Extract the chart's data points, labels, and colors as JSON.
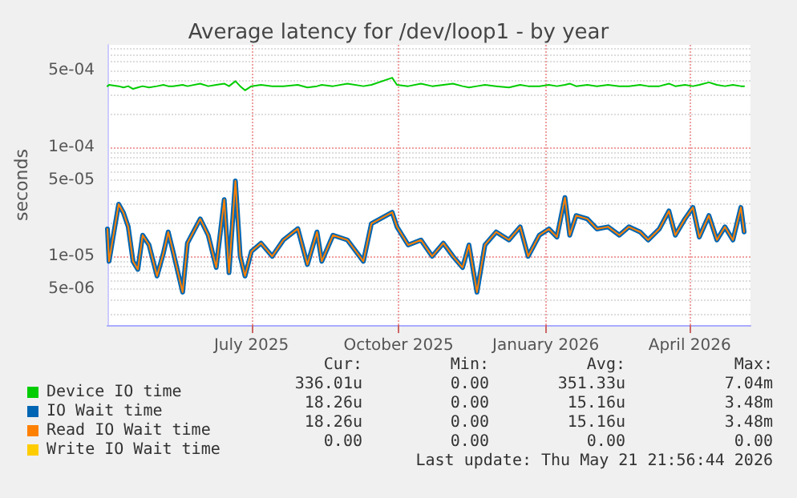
{
  "chart_data": {
    "type": "line",
    "title": "Average latency for /dev/loop1 - by year",
    "ylabel": "seconds",
    "log": "y",
    "grid": true,
    "legend": "bottom left",
    "xlim": [
      "2025-04-02",
      "2026-05-09"
    ],
    "xticks": [
      {
        "value": "2025-07-01",
        "label": "July 2025"
      },
      {
        "value": "2025-10-01",
        "label": "October 2025"
      },
      {
        "value": "2026-01-01",
        "label": "January 2026"
      },
      {
        "value": "2026-04-01",
        "label": "April 2026"
      }
    ],
    "ylim": [
      2.35e-06,
      0.00086
    ],
    "yticks": [
      {
        "value": 5e-06,
        "label": "5e-06"
      },
      {
        "value": 1e-05,
        "label": "1e-05"
      },
      {
        "value": 5e-05,
        "label": "5e-05"
      },
      {
        "value": 0.0001,
        "label": "1e-04"
      },
      {
        "value": 0.0005,
        "label": "5e-04"
      }
    ],
    "x": [
      "2025-04-02",
      "2025-04-03",
      "2025-04-09",
      "2025-04-12",
      "2025-04-15",
      "2025-04-18",
      "2025-04-21",
      "2025-04-24",
      "2025-04-28",
      "2025-05-03",
      "2025-05-07",
      "2025-05-10",
      "2025-05-13",
      "2025-05-19",
      "2025-05-22",
      "2025-05-30",
      "2025-06-04",
      "2025-06-09",
      "2025-06-14",
      "2025-06-17",
      "2025-06-21",
      "2025-06-24",
      "2025-06-27",
      "2025-07-01",
      "2025-07-07",
      "2025-07-14",
      "2025-07-21",
      "2025-07-30",
      "2025-08-05",
      "2025-08-11",
      "2025-08-14",
      "2025-08-21",
      "2025-08-30",
      "2025-09-09",
      "2025-09-14",
      "2025-09-27",
      "2025-09-30",
      "2025-10-07",
      "2025-10-15",
      "2025-10-22",
      "2025-10-29",
      "2025-11-04",
      "2025-11-10",
      "2025-11-14",
      "2025-11-19",
      "2025-11-24",
      "2025-12-01",
      "2025-12-09",
      "2025-12-16",
      "2025-12-21",
      "2025-12-28",
      "2026-01-03",
      "2026-01-08",
      "2026-01-13",
      "2026-01-16",
      "2026-01-20",
      "2026-01-27",
      "2026-02-02",
      "2026-02-09",
      "2026-02-16",
      "2026-02-22",
      "2026-03-01",
      "2026-03-06",
      "2026-03-13",
      "2026-03-19",
      "2026-03-23",
      "2026-03-29",
      "2026-04-03",
      "2026-04-07",
      "2026-04-13",
      "2026-04-18",
      "2026-04-23",
      "2026-04-28",
      "2026-05-03",
      "2026-05-05"
    ],
    "series": [
      {
        "name": "Device IO time",
        "color": "#00cc00",
        "values": [
          0.00036,
          0.00037,
          0.00036,
          0.00035,
          0.00036,
          0.00034,
          0.00035,
          0.00036,
          0.00035,
          0.00036,
          0.00037,
          0.00036,
          0.00036,
          0.00037,
          0.00036,
          0.00038,
          0.00036,
          0.00037,
          0.00038,
          0.00036,
          0.0004,
          0.00036,
          0.00033,
          0.00036,
          0.00037,
          0.00036,
          0.00036,
          0.00037,
          0.00035,
          0.00036,
          0.00037,
          0.00036,
          0.00038,
          0.00036,
          0.00037,
          0.00043,
          0.00037,
          0.00036,
          0.00038,
          0.00036,
          0.00037,
          0.00038,
          0.00036,
          0.00035,
          0.00036,
          0.00037,
          0.00036,
          0.00035,
          0.00037,
          0.00036,
          0.00036,
          0.00037,
          0.00036,
          0.00037,
          0.00038,
          0.00036,
          0.00037,
          0.00036,
          0.00037,
          0.00036,
          0.00036,
          0.00037,
          0.00036,
          0.00036,
          0.00038,
          0.00036,
          0.00037,
          0.00036,
          0.00037,
          0.00039,
          0.00037,
          0.00036,
          0.00037,
          0.00036,
          0.00036
        ]
      },
      {
        "name": "IO Wait time",
        "color": "#0066b3",
        "values": [
          1.78e-05,
          9e-06,
          3e-05,
          2.5e-05,
          1.86e-05,
          9e-06,
          7.6e-06,
          1.56e-05,
          1.27e-05,
          6.6e-06,
          1.07e-05,
          1.67e-05,
          1.11e-05,
          4.7e-06,
          1.32e-05,
          2.2e-05,
          1.56e-05,
          7.9e-06,
          3.3e-05,
          7.1e-06,
          4.9e-05,
          1e-05,
          6.6e-06,
          1.11e-05,
          1.32e-05,
          1e-05,
          1.41e-05,
          1.79e-05,
          8.4e-06,
          1.67e-05,
          9e-06,
          1.56e-05,
          1.41e-05,
          9e-06,
          1.99e-05,
          2.53e-05,
          1.86e-05,
          1.27e-05,
          1.41e-05,
          1e-05,
          1.32e-05,
          1e-05,
          7.9e-06,
          1.27e-05,
          4.7e-06,
          1.27e-05,
          1.67e-05,
          1.41e-05,
          1.86e-05,
          1e-05,
          1.56e-05,
          1.78e-05,
          1.5e-05,
          3.45e-05,
          1.56e-05,
          2.36e-05,
          2.2e-05,
          1.78e-05,
          1.86e-05,
          1.56e-05,
          1.86e-05,
          1.67e-05,
          1.41e-05,
          1.78e-05,
          2.6e-05,
          1.56e-05,
          2.2e-05,
          2.8e-05,
          1.5e-05,
          2.36e-05,
          1.41e-05,
          1.86e-05,
          1.41e-05,
          2.8e-05,
          1.67e-05
        ]
      },
      {
        "name": "Read IO Wait time",
        "color": "#ff8000",
        "values": [
          1.78e-05,
          9e-06,
          3e-05,
          2.5e-05,
          1.86e-05,
          9e-06,
          7.6e-06,
          1.56e-05,
          1.27e-05,
          6.6e-06,
          1.07e-05,
          1.67e-05,
          1.11e-05,
          4.7e-06,
          1.32e-05,
          2.2e-05,
          1.56e-05,
          7.9e-06,
          3.3e-05,
          7.1e-06,
          4.9e-05,
          1e-05,
          6.6e-06,
          1.11e-05,
          1.32e-05,
          1e-05,
          1.41e-05,
          1.79e-05,
          8.4e-06,
          1.67e-05,
          9e-06,
          1.56e-05,
          1.41e-05,
          9e-06,
          1.99e-05,
          2.53e-05,
          1.86e-05,
          1.27e-05,
          1.41e-05,
          1e-05,
          1.32e-05,
          1e-05,
          7.9e-06,
          1.27e-05,
          4.7e-06,
          1.27e-05,
          1.67e-05,
          1.41e-05,
          1.86e-05,
          1e-05,
          1.56e-05,
          1.78e-05,
          1.5e-05,
          3.45e-05,
          1.56e-05,
          2.36e-05,
          2.2e-05,
          1.78e-05,
          1.86e-05,
          1.56e-05,
          1.86e-05,
          1.67e-05,
          1.41e-05,
          1.78e-05,
          2.6e-05,
          1.56e-05,
          2.2e-05,
          2.8e-05,
          1.5e-05,
          2.36e-05,
          1.41e-05,
          1.86e-05,
          1.41e-05,
          2.8e-05,
          1.67e-05
        ]
      },
      {
        "name": "Write IO Wait time",
        "color": "#ffcc00",
        "values": [
          null,
          null,
          null,
          null,
          null,
          null,
          null,
          null,
          null,
          null,
          null,
          null,
          null,
          null,
          null,
          null,
          null,
          null,
          null,
          null,
          null,
          null,
          null,
          null,
          null,
          null,
          null,
          null,
          null,
          null,
          null,
          null,
          null,
          null,
          null,
          null,
          null,
          null,
          null,
          null,
          null,
          null,
          null,
          null,
          null,
          null,
          null,
          null,
          null,
          null,
          null,
          null,
          null,
          null,
          null,
          null,
          null,
          null,
          null,
          null,
          null,
          null,
          null,
          null,
          null,
          null,
          null,
          null,
          null,
          null,
          null,
          null,
          null,
          null,
          null
        ]
      }
    ],
    "annotations": [
      "Cur:",
      "Min:",
      "Avg:",
      "Max:",
      "336.01u",
      "0.00",
      "351.33u",
      "7.04m",
      "18.26u",
      "0.00",
      "15.16u",
      "3.48m",
      "18.26u",
      "0.00",
      "15.16u",
      "3.48m",
      "0.00",
      "0.00",
      "0.00",
      "0.00",
      "Last update: Thu May 21 21:56:44 2026"
    ]
  }
}
